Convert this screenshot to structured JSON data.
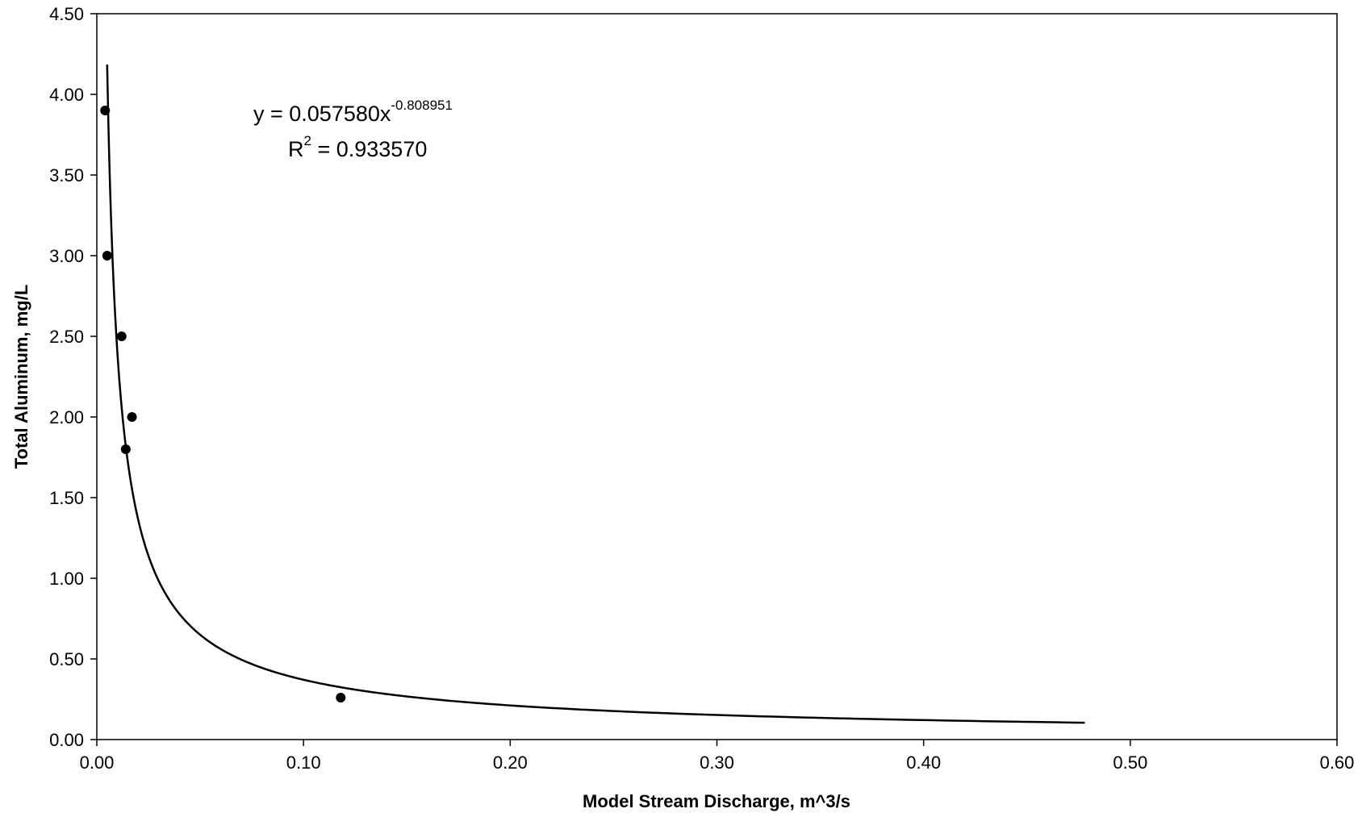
{
  "chart_data": {
    "type": "scatter",
    "title": "",
    "xlabel": "Model Stream Discharge, m^3/s",
    "ylabel": "Total Aluminum, mg/L",
    "xlim": [
      0,
      0.6
    ],
    "ylim": [
      0,
      4.5
    ],
    "x_ticks": [
      "0.00",
      "0.10",
      "0.20",
      "0.30",
      "0.40",
      "0.50",
      "0.60"
    ],
    "y_ticks": [
      "0.00",
      "0.50",
      "1.00",
      "1.50",
      "2.00",
      "2.50",
      "3.00",
      "3.50",
      "4.00",
      "4.50"
    ],
    "grid": false,
    "legend": "none",
    "points": [
      {
        "x": 0.004,
        "y": 3.9
      },
      {
        "x": 0.005,
        "y": 3.0
      },
      {
        "x": 0.012,
        "y": 2.5
      },
      {
        "x": 0.017,
        "y": 2.0
      },
      {
        "x": 0.014,
        "y": 1.8
      },
      {
        "x": 0.118,
        "y": 0.26
      }
    ],
    "trendline": {
      "type": "power",
      "coefficient": 0.05758,
      "exponent": -0.808951,
      "x_start": 0.005,
      "x_end": 0.478
    },
    "annotation": {
      "equation_prefix": "y = 0.057580x",
      "equation_exponent": "-0.808951",
      "r2_prefix": "R",
      "r2_sup": "2",
      "r2_value": " = 0.933570"
    },
    "colors": {
      "axis": "#000000",
      "marker": "#000000",
      "trendline": "#000000"
    }
  }
}
